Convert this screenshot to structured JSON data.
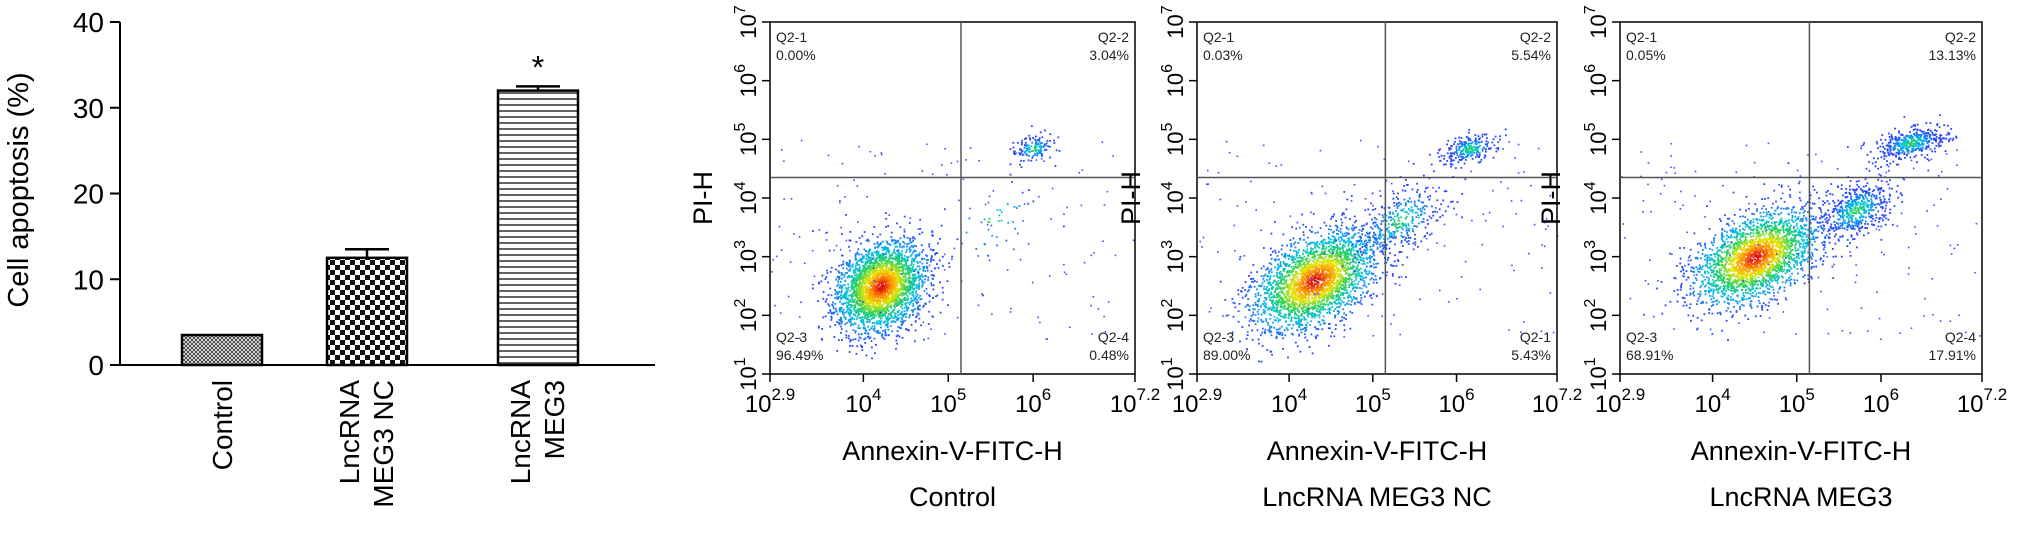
{
  "chart_data": [
    {
      "type": "bar",
      "ylabel": "Cell apoptosis (%)",
      "ylim": [
        0,
        40
      ],
      "yticks": [
        0,
        10,
        20,
        30,
        40
      ],
      "categories": [
        {
          "line1": "Control",
          "line2": ""
        },
        {
          "line1": "LncRNA",
          "line2": "MEG3 NC"
        },
        {
          "line1": "LncRNA",
          "line2": "MEG3"
        }
      ],
      "values": [
        3.5,
        12.5,
        32.0
      ],
      "errors": [
        0,
        1.0,
        0.5
      ],
      "annotations": [
        "",
        "",
        "*"
      ],
      "fill_patterns": [
        "fine-crosshatch",
        "checkerboard",
        "horizontal-lines"
      ]
    },
    {
      "type": "scatter",
      "xlabel": "Annexin-V-FITC-H",
      "ylabel": "PI-H",
      "subtitle": "Control",
      "log_scale": true,
      "xlim_exp": [
        2.9,
        7.2
      ],
      "ylim_exp": [
        1,
        7
      ],
      "x_ticks": [
        {
          "base": "10",
          "exp": "2.9"
        },
        {
          "base": "10",
          "exp": "4"
        },
        {
          "base": "10",
          "exp": "5"
        },
        {
          "base": "10",
          "exp": "6"
        },
        {
          "base": "10",
          "exp": "7.2"
        }
      ],
      "y_ticks": [
        {
          "base": "10",
          "exp": "1"
        },
        {
          "base": "10",
          "exp": "2"
        },
        {
          "base": "10",
          "exp": "3"
        },
        {
          "base": "10",
          "exp": "4"
        },
        {
          "base": "10",
          "exp": "5"
        },
        {
          "base": "10",
          "exp": "6"
        },
        {
          "base": "10",
          "exp": "7"
        }
      ],
      "gate": {
        "x_exp": 5.15,
        "y_exp": 4.35
      },
      "quadrants": [
        {
          "name": "Q2-1",
          "value": "0.00%",
          "corner": "top-left"
        },
        {
          "name": "Q2-2",
          "value": "3.04%",
          "corner": "top-right"
        },
        {
          "name": "Q2-3",
          "value": "96.49%",
          "corner": "bottom-left"
        },
        {
          "name": "Q2-4",
          "value": "0.48%",
          "corner": "bottom-right"
        }
      ]
    },
    {
      "type": "scatter",
      "xlabel": "Annexin-V-FITC-H",
      "ylabel": "PI-H",
      "subtitle": "LncRNA MEG3 NC",
      "log_scale": true,
      "xlim_exp": [
        2.9,
        7.2
      ],
      "ylim_exp": [
        1,
        7
      ],
      "x_ticks": [
        {
          "base": "10",
          "exp": "2.9"
        },
        {
          "base": "10",
          "exp": "4"
        },
        {
          "base": "10",
          "exp": "5"
        },
        {
          "base": "10",
          "exp": "6"
        },
        {
          "base": "10",
          "exp": "7.2"
        }
      ],
      "y_ticks": [
        {
          "base": "10",
          "exp": "1"
        },
        {
          "base": "10",
          "exp": "2"
        },
        {
          "base": "10",
          "exp": "3"
        },
        {
          "base": "10",
          "exp": "4"
        },
        {
          "base": "10",
          "exp": "5"
        },
        {
          "base": "10",
          "exp": "6"
        },
        {
          "base": "10",
          "exp": "7"
        }
      ],
      "gate": {
        "x_exp": 5.15,
        "y_exp": 4.35
      },
      "quadrants": [
        {
          "name": "Q2-1",
          "value": "0.03%",
          "corner": "top-left"
        },
        {
          "name": "Q2-2",
          "value": "5.54%",
          "corner": "top-right"
        },
        {
          "name": "Q2-3",
          "value": "89.00%",
          "corner": "bottom-left"
        },
        {
          "name": "Q2-1",
          "value": "5.43%",
          "corner": "bottom-right"
        }
      ]
    },
    {
      "type": "scatter",
      "xlabel": "Annexin-V-FITC-H",
      "ylabel": "PI-H",
      "subtitle": "LncRNA MEG3",
      "log_scale": true,
      "xlim_exp": [
        2.9,
        7.2
      ],
      "ylim_exp": [
        1,
        7
      ],
      "x_ticks": [
        {
          "base": "10",
          "exp": "2.9"
        },
        {
          "base": "10",
          "exp": "4"
        },
        {
          "base": "10",
          "exp": "5"
        },
        {
          "base": "10",
          "exp": "6"
        },
        {
          "base": "10",
          "exp": "7.2"
        }
      ],
      "y_ticks": [
        {
          "base": "10",
          "exp": "1"
        },
        {
          "base": "10",
          "exp": "2"
        },
        {
          "base": "10",
          "exp": "3"
        },
        {
          "base": "10",
          "exp": "4"
        },
        {
          "base": "10",
          "exp": "5"
        },
        {
          "base": "10",
          "exp": "6"
        },
        {
          "base": "10",
          "exp": "7"
        }
      ],
      "gate": {
        "x_exp": 5.15,
        "y_exp": 4.35
      },
      "quadrants": [
        {
          "name": "Q2-1",
          "value": "0.05%",
          "corner": "top-left"
        },
        {
          "name": "Q2-2",
          "value": "13.13%",
          "corner": "top-right"
        },
        {
          "name": "Q2-3",
          "value": "68.91%",
          "corner": "bottom-left"
        },
        {
          "name": "Q2-4",
          "value": "17.91%",
          "corner": "bottom-right"
        }
      ]
    }
  ]
}
